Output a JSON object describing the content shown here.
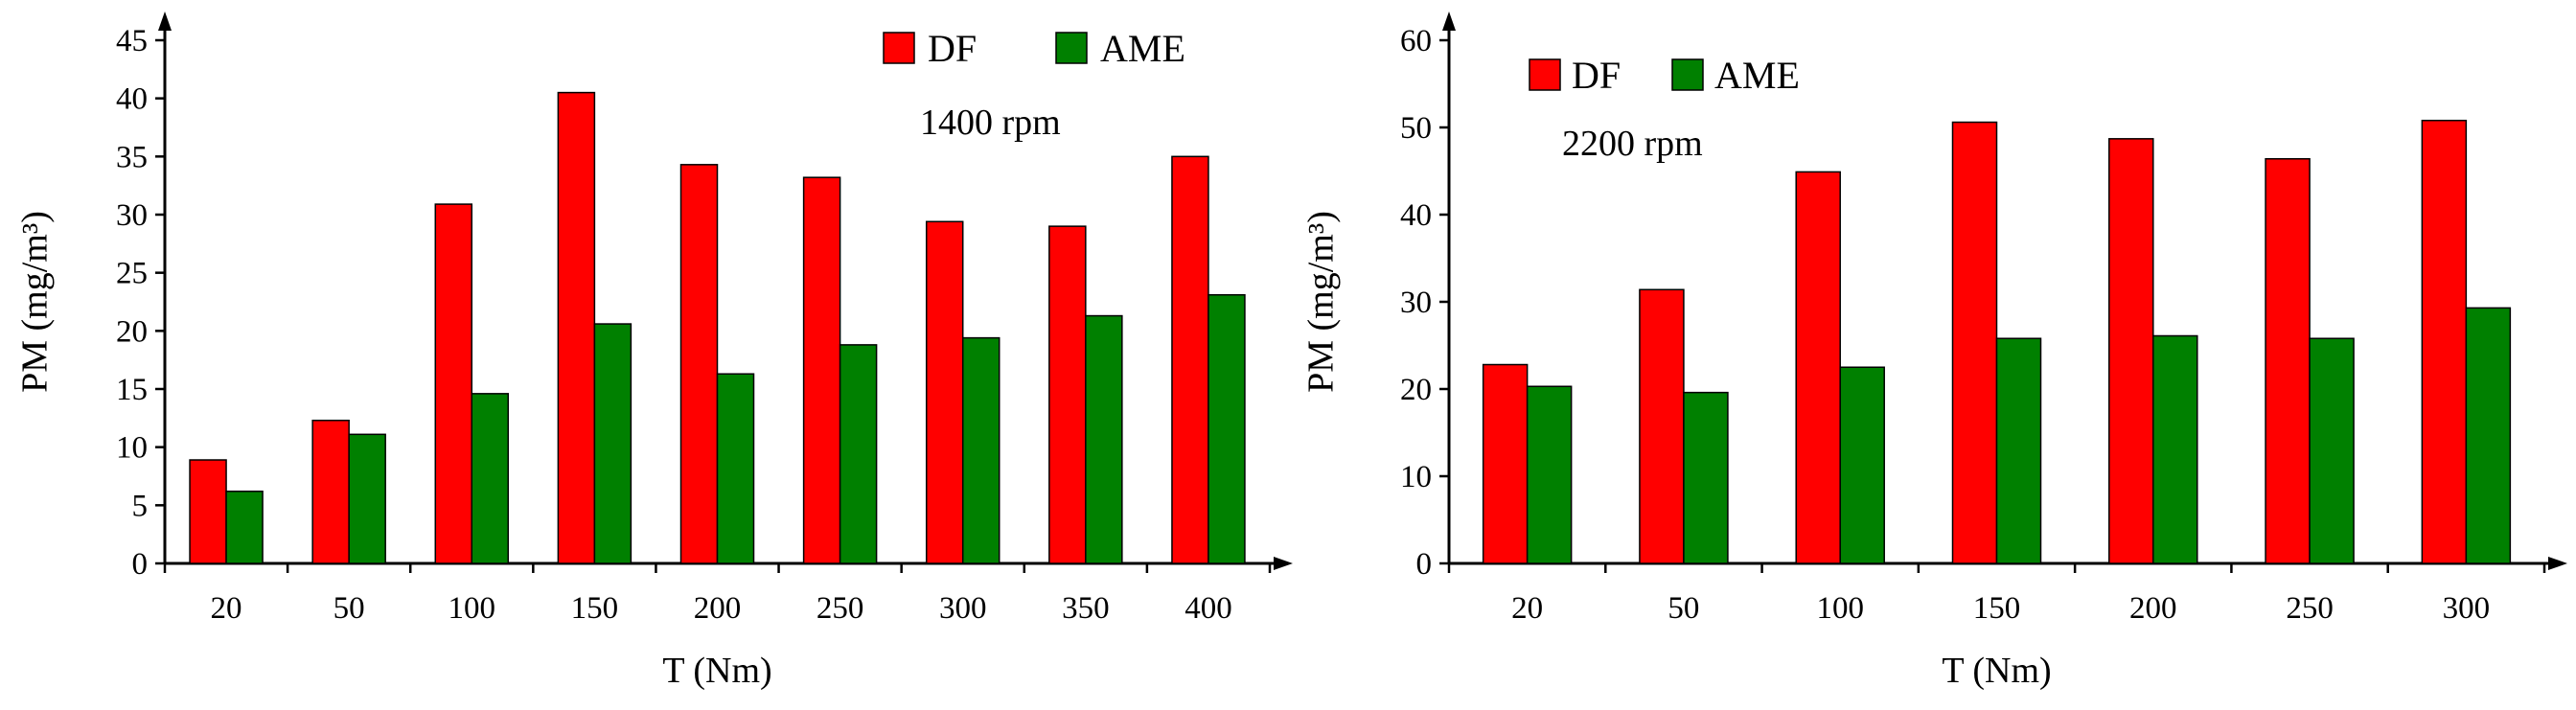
{
  "chart_data": [
    {
      "type": "bar",
      "annotation": "1400 rpm",
      "xlabel": "T (Nm)",
      "ylabel": "PM (mg/m³)",
      "ylim": [
        0,
        45
      ],
      "yticks": [
        0,
        5,
        10,
        15,
        20,
        25,
        30,
        35,
        40,
        45
      ],
      "categories": [
        "20",
        "50",
        "100",
        "150",
        "200",
        "250",
        "300",
        "350",
        "400"
      ],
      "series": [
        {
          "name": "DF",
          "color": "#ff0000",
          "values": [
            8.9,
            12.3,
            30.9,
            40.5,
            34.3,
            33.2,
            29.4,
            29.0,
            35.0
          ]
        },
        {
          "name": "AME",
          "color": "#008000",
          "values": [
            6.2,
            11.1,
            14.6,
            20.6,
            16.3,
            18.8,
            19.4,
            21.3,
            23.1
          ]
        }
      ],
      "legend": "top-right",
      "grid": false
    },
    {
      "type": "bar",
      "annotation": "2200 rpm",
      "xlabel": "T (Nm)",
      "ylabel": "PM (mg/m³)",
      "ylim": [
        0,
        60
      ],
      "yticks": [
        0,
        10,
        20,
        30,
        40,
        50,
        60
      ],
      "categories": [
        "20",
        "50",
        "100",
        "150",
        "200",
        "250",
        "300"
      ],
      "series": [
        {
          "name": "DF",
          "color": "#ff0000",
          "values": [
            22.8,
            31.4,
            44.9,
            50.6,
            48.7,
            46.4,
            50.8
          ]
        },
        {
          "name": "AME",
          "color": "#008000",
          "values": [
            20.3,
            19.6,
            22.5,
            25.8,
            26.1,
            25.8,
            29.3
          ]
        }
      ],
      "legend": "top-left",
      "grid": false
    }
  ]
}
